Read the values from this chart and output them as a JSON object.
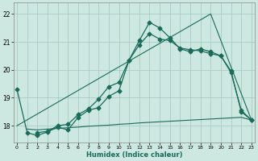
{
  "xlabel": "Humidex (Indice chaleur)",
  "bg_color": "#cce8e0",
  "grid_color": "#aaccc4",
  "line_color": "#1a6b5a",
  "line1_x": [
    0,
    1,
    2,
    3,
    4,
    5,
    6,
    7,
    8,
    9,
    10,
    11,
    12,
    13,
    14,
    15,
    16,
    17,
    18,
    19,
    20,
    21,
    22,
    23
  ],
  "line1_y": [
    19.3,
    17.75,
    17.65,
    17.78,
    17.95,
    17.85,
    18.3,
    18.55,
    18.65,
    19.05,
    19.25,
    20.35,
    21.05,
    21.7,
    21.5,
    21.15,
    20.75,
    20.65,
    20.75,
    20.65,
    20.5,
    19.9,
    18.55,
    18.2
  ],
  "line2_x": [
    2,
    3,
    4,
    5,
    6,
    7,
    8,
    9,
    10,
    11,
    12,
    13,
    14,
    15,
    16,
    17,
    18,
    19,
    20,
    21,
    22,
    23
  ],
  "line2_y": [
    17.75,
    17.8,
    18.0,
    18.05,
    18.4,
    18.6,
    18.95,
    19.4,
    19.55,
    20.35,
    20.9,
    21.3,
    21.1,
    21.05,
    20.78,
    20.72,
    20.68,
    20.58,
    20.5,
    19.95,
    18.5,
    18.2
  ],
  "line3_x": [
    1,
    2,
    3,
    4,
    5,
    6,
    7,
    8,
    9,
    10,
    11,
    12,
    13,
    14,
    15,
    16,
    17,
    18,
    19,
    20,
    21,
    22,
    23
  ],
  "line3_y": [
    17.88,
    17.85,
    17.88,
    17.9,
    17.93,
    17.95,
    17.98,
    18.0,
    18.02,
    18.05,
    18.07,
    18.1,
    18.12,
    18.14,
    18.16,
    18.18,
    18.2,
    18.22,
    18.24,
    18.26,
    18.28,
    18.3,
    18.2
  ],
  "line4_x": [
    0,
    19,
    23
  ],
  "line4_y": [
    18.0,
    22.0,
    18.2
  ],
  "ylim": [
    17.4,
    22.4
  ],
  "xlim": [
    -0.3,
    23.3
  ],
  "yticks": [
    18,
    19,
    20,
    21,
    22
  ],
  "xticks": [
    0,
    1,
    2,
    3,
    4,
    5,
    6,
    7,
    8,
    9,
    10,
    11,
    12,
    13,
    14,
    15,
    16,
    17,
    18,
    19,
    20,
    21,
    22,
    23
  ]
}
